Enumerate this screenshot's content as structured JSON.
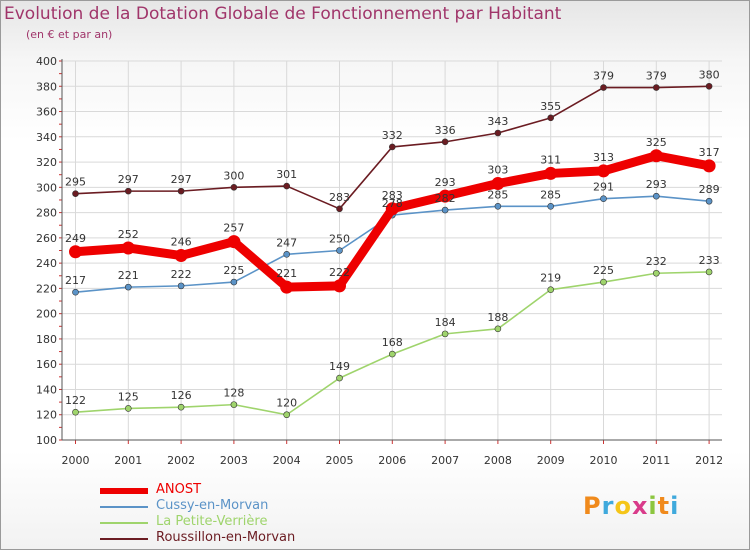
{
  "header": {
    "title": "Evolution de la Dotation Globale de Fonctionnement par Habitant",
    "subtitle": "(en € et par an)"
  },
  "chart_data": {
    "type": "line",
    "title": "Evolution de la Dotation Globale de Fonctionnement par Habitant",
    "subtitle": "(en € et par an)",
    "xlabel": "",
    "ylabel": "",
    "x": [
      "2000",
      "2001",
      "2002",
      "2003",
      "2004",
      "2005",
      "2006",
      "2007",
      "2008",
      "2009",
      "2010",
      "2011",
      "2012"
    ],
    "ylim": [
      100,
      400
    ],
    "yticks": [
      100,
      120,
      140,
      160,
      180,
      200,
      220,
      240,
      260,
      280,
      300,
      320,
      340,
      360,
      380,
      400
    ],
    "grid": true,
    "legend_position": "bottom-left",
    "series": [
      {
        "name": "Roussillon-en-Morvan",
        "color": "#6b1c22",
        "values": [
          295,
          297,
          297,
          300,
          301,
          283,
          332,
          336,
          343,
          355,
          379,
          379,
          380
        ]
      },
      {
        "name": "Cussy-en-Morvan",
        "color": "#5b93c7",
        "values": [
          217,
          221,
          222,
          225,
          247,
          250,
          278,
          282,
          285,
          285,
          291,
          293,
          289
        ]
      },
      {
        "name": "La Petite-Verrière",
        "color": "#9fd46c",
        "values": [
          122,
          125,
          126,
          128,
          120,
          149,
          168,
          184,
          188,
          219,
          225,
          232,
          233
        ]
      },
      {
        "name": "ANOST",
        "color": "#ee0000",
        "values": [
          249,
          252,
          246,
          257,
          221,
          222,
          283,
          293,
          303,
          311,
          313,
          325,
          317
        ]
      }
    ]
  },
  "legend": [
    {
      "label": "ANOST",
      "color": "#ee0000",
      "thickness": "thick"
    },
    {
      "label": "Cussy-en-Morvan",
      "color": "#5b93c7",
      "thickness": "thin"
    },
    {
      "label": "La Petite-Verrière",
      "color": "#9fd46c",
      "thickness": "thin"
    },
    {
      "label": "Roussillon-en-Morvan",
      "color": "#6b1c22",
      "thickness": "thin"
    }
  ],
  "logo": {
    "letters": [
      "P",
      "r",
      "o",
      "x",
      "i",
      "t",
      "i"
    ],
    "colors": [
      "#f08a1c",
      "#3fa9dc",
      "#f5c518",
      "#d93b8a",
      "#8cc63f",
      "#f08a1c",
      "#3fa9dc"
    ]
  }
}
